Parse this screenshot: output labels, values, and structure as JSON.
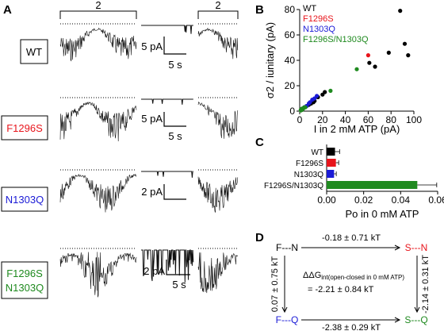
{
  "panels": {
    "A": "A",
    "B": "B",
    "C": "C",
    "D": "D"
  },
  "panel_a": {
    "bracket_labels": [
      "2",
      "2"
    ],
    "rows": [
      {
        "label": "WT",
        "label_color": "#000000",
        "scale_pa": "5 pA",
        "scale_s": "5 s"
      },
      {
        "label": "F1296S",
        "label_color": "#e8141b",
        "scale_pa": "5 pA",
        "scale_s": "5 s"
      },
      {
        "label": "N1303Q",
        "label_color": "#1a1ad6",
        "scale_pa": "2 pA",
        "scale_s": "5 s"
      },
      {
        "label_line1": "F1296S",
        "label_line2": "N1303Q",
        "label_color": "#1f8a1f",
        "scale_pa": "2 pA",
        "scale_s": "5 s"
      }
    ]
  },
  "chart_data": [
    {
      "type": "scatter",
      "panel": "B",
      "xlabel": "I in 2 mM ATP (pA)",
      "ylabel": "σ2 / iunitary (pA)",
      "xlim": [
        0,
        100
      ],
      "ylim": [
        0,
        80
      ],
      "xticks": [
        0,
        20,
        40,
        60,
        80,
        100
      ],
      "yticks": [
        0,
        20,
        40,
        60,
        80
      ],
      "legend_position": "top-left",
      "series": [
        {
          "name": "WT",
          "color": "#000000",
          "points": [
            [
              88,
              79
            ],
            [
              92,
              53
            ],
            [
              95,
              44
            ],
            [
              78,
              46
            ],
            [
              66,
              35
            ],
            [
              61,
              38
            ],
            [
              22,
              15
            ],
            [
              20,
              13
            ],
            [
              16,
              11
            ],
            [
              13,
              8
            ],
            [
              12,
              7
            ],
            [
              10,
              6
            ],
            [
              8,
              5
            ],
            [
              6,
              4
            ],
            [
              4,
              3
            ],
            [
              3,
              2
            ],
            [
              2,
              1
            ],
            [
              1,
              1
            ]
          ]
        },
        {
          "name": "F1296S",
          "color": "#e8141b",
          "points": [
            [
              60,
              44
            ]
          ]
        },
        {
          "name": "N1303Q",
          "color": "#1a1ad6",
          "points": [
            [
              15,
              12
            ],
            [
              13,
              10
            ],
            [
              11,
              9
            ],
            [
              9,
              7
            ],
            [
              8,
              6
            ],
            [
              6,
              4
            ],
            [
              4,
              3
            ]
          ]
        },
        {
          "name": "F1296S/N1303Q",
          "color": "#1f8a1f",
          "points": [
            [
              50,
              33
            ],
            [
              27,
              16
            ],
            [
              5,
              3
            ],
            [
              4,
              3
            ],
            [
              3,
              2
            ],
            [
              2,
              2
            ],
            [
              2,
              1
            ],
            [
              1,
              1
            ],
            [
              1,
              0.5
            ]
          ]
        }
      ]
    },
    {
      "type": "bar",
      "panel": "C",
      "orientation": "horizontal",
      "xlabel": "Po in 0 mM ATP",
      "xlim": [
        0,
        0.06
      ],
      "xticks": [
        "0.00",
        "0.02",
        "0.04",
        "0.06"
      ],
      "categories": [
        "WT",
        "F1296S",
        "N1303Q",
        "F1296S/N1303Q"
      ],
      "values": [
        0.0045,
        0.005,
        0.004,
        0.049
      ],
      "errors": [
        0.0025,
        0.0015,
        0.0012,
        0.0105
      ],
      "colors": [
        "#000000",
        "#e8141b",
        "#1a1ad6",
        "#1f8a1f"
      ]
    }
  ],
  "panel_d": {
    "nodes": {
      "tl": {
        "text": "F---N",
        "color": "#000000"
      },
      "tr": {
        "text": "S---N",
        "color": "#e8141b"
      },
      "bl": {
        "text": "F---Q",
        "color": "#1a1ad6"
      },
      "br": {
        "text": "S---Q",
        "color": "#1f8a1f"
      }
    },
    "edges": {
      "top": "-0.18 ± 0.71 kT",
      "bottom": "-2.38 ± 0.29 kT",
      "left": "0.07 ± 0.75 kT",
      "right": "-2.14 ± 0.31 kT"
    },
    "center_line1_main": "ΔΔG",
    "center_line1_sub": "int(open-closed in 0 mM ATP)",
    "center_line2": "= -2.21 ± 0.84 kT"
  }
}
